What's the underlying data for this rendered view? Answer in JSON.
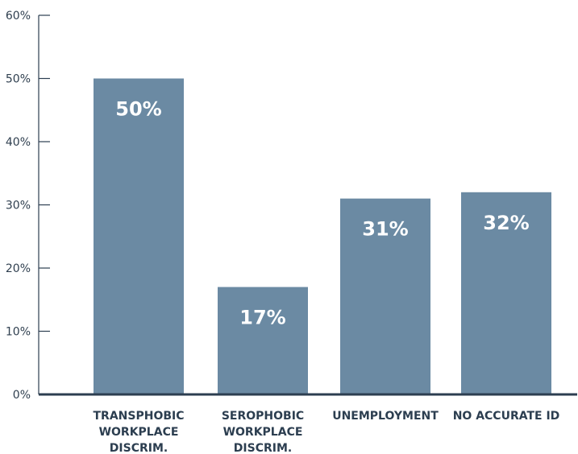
{
  "chart_data": {
    "type": "bar",
    "categories": [
      [
        "TRANSPHOBIC",
        "WORKPLACE",
        "DISCRIM."
      ],
      [
        "SEROPHOBIC",
        "WORKPLACE",
        "DISCRIM."
      ],
      [
        "UNEMPLOYMENT"
      ],
      [
        "NO ACCURATE ID"
      ]
    ],
    "values": [
      50,
      17,
      31,
      32
    ],
    "data_labels": [
      "50%",
      "17%",
      "31%",
      "32%"
    ],
    "title": "",
    "xlabel": "",
    "ylabel": "",
    "ylim": [
      0,
      60
    ],
    "yticks": [
      0,
      10,
      20,
      30,
      40,
      50,
      60
    ],
    "ytick_labels": [
      "0%",
      "10%",
      "20%",
      "30%",
      "40%",
      "50%",
      "60%"
    ],
    "grid": false,
    "bar_color": "#6b8aa3",
    "axis_color": "#2c3e50"
  }
}
